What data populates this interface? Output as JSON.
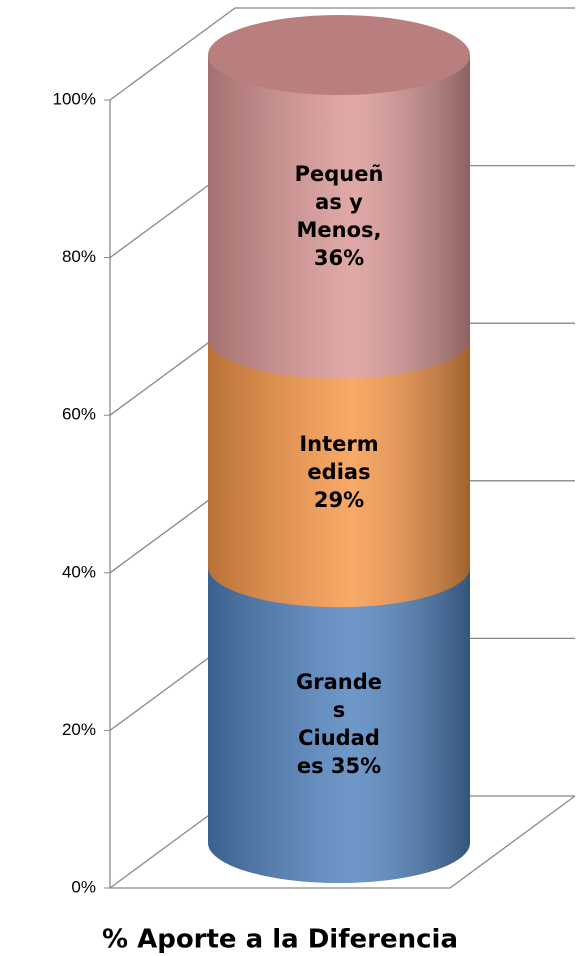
{
  "chart_data": {
    "type": "cylinder_stacked",
    "categories": [
      "% Aporte a la Diferencia"
    ],
    "series": [
      {
        "color": "#4f81bd",
        "values": [
          35
        ],
        "value_labels": [
          "Grandes Ciudades 35%"
        ]
      },
      {
        "color": "#f79646",
        "values": [
          29
        ],
        "value_labels": [
          "Intermedias 29%"
        ]
      },
      {
        "color": "#d99694",
        "values": [
          36
        ],
        "value_labels": [
          "Pequeñas y Menos, 36%"
        ]
      }
    ],
    "ylim": [
      0,
      100
    ],
    "yticks": [
      {
        "value": 0,
        "label": "0%"
      },
      {
        "value": 20,
        "label": "20%"
      },
      {
        "value": 40,
        "label": "40%"
      },
      {
        "value": 60,
        "label": "60%"
      },
      {
        "value": 80,
        "label": "80%"
      },
      {
        "value": 100,
        "label": "100%"
      }
    ],
    "grid": true
  }
}
